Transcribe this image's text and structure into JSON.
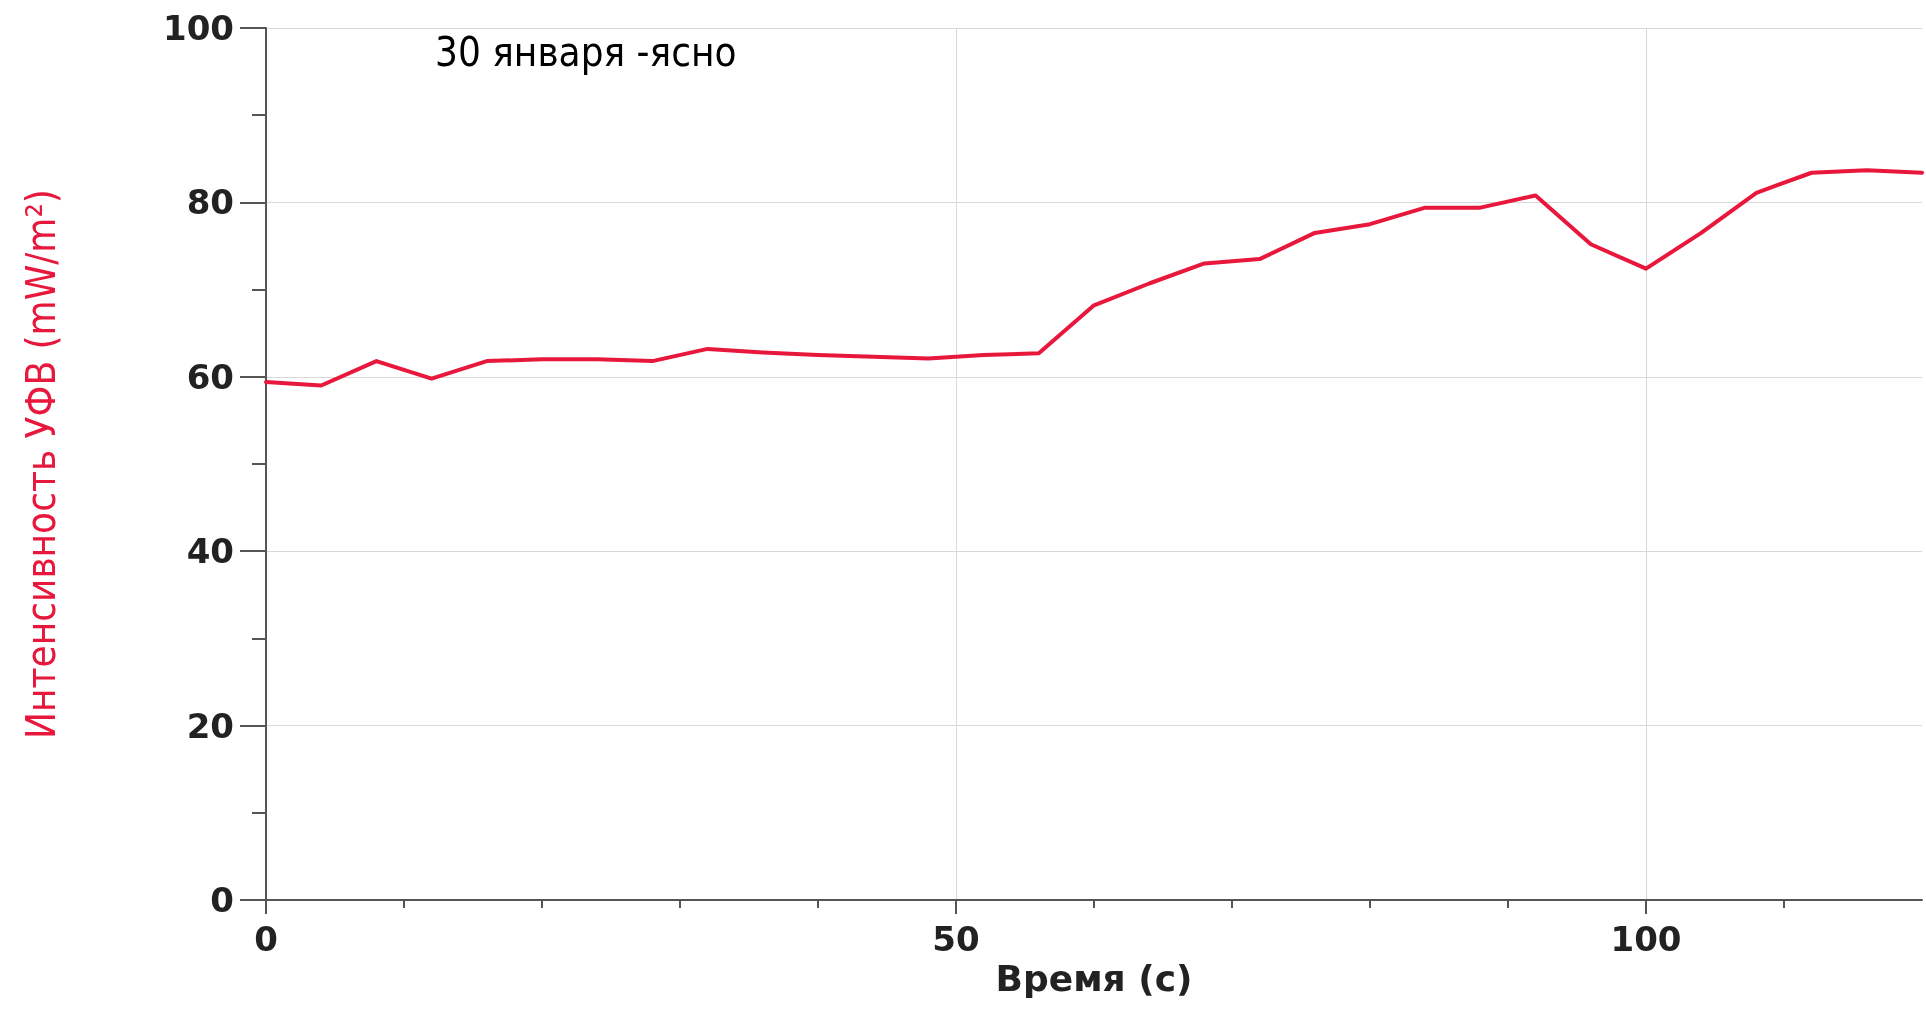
{
  "chart_data": {
    "type": "line",
    "xlabel": "Время (с)",
    "ylabel": "Интенсивность УФВ (mW/m²)",
    "annotations": [
      "30 января -ясно"
    ],
    "x": [
      0,
      4,
      8,
      12,
      16,
      20,
      24,
      28,
      32,
      36,
      40,
      44,
      48,
      52,
      56,
      60,
      64,
      68,
      72,
      76,
      80,
      84,
      88,
      92,
      96,
      100,
      104,
      108,
      112,
      116,
      120
    ],
    "series": [
      {
        "color": "#e8173c",
        "values": [
          59.4,
          59.0,
          61.8,
          59.8,
          61.8,
          62,
          62,
          61.8,
          63.2,
          62.8,
          62.5,
          62.3,
          62.1,
          62.5,
          62.7,
          68.2,
          70.7,
          73,
          73.5,
          76.5,
          77.5,
          79.4,
          79.4,
          80.8,
          75.2,
          72.4,
          76.5,
          81.1,
          83.4,
          83.7,
          83.4
        ]
      }
    ],
    "xlim": [
      0,
      120
    ],
    "xticks": [
      0,
      50,
      100
    ],
    "ylim": [
      0,
      100
    ],
    "yticks": [
      0,
      20,
      40,
      60,
      80,
      100
    ],
    "grid": true,
    "marker": "none",
    "line_style": "solid"
  }
}
